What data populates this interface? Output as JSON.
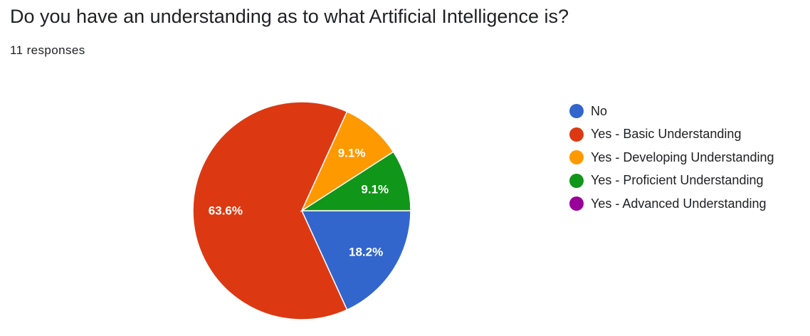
{
  "header": {
    "question": "Do you have an understanding as to what Artificial Intelligence is?",
    "responses": "11 responses"
  },
  "chart_data": {
    "type": "pie",
    "total_responses": 11,
    "slices": [
      {
        "name": "No",
        "value": 2,
        "percent_label": "18.2%",
        "color": "#3366cc"
      },
      {
        "name": "Yes - Basic Understanding",
        "value": 7,
        "percent_label": "63.6%",
        "color": "#dc3912"
      },
      {
        "name": "Yes - Developing Understanding",
        "value": 1,
        "percent_label": "9.1%",
        "color": "#ff9900"
      },
      {
        "name": "Yes - Proficient Understanding",
        "value": 1,
        "percent_label": "9.1%",
        "color": "#109618"
      },
      {
        "name": "Yes - Advanced Understanding",
        "value": 0,
        "percent_label": "",
        "color": "#990099"
      }
    ],
    "legend_position": "right"
  }
}
